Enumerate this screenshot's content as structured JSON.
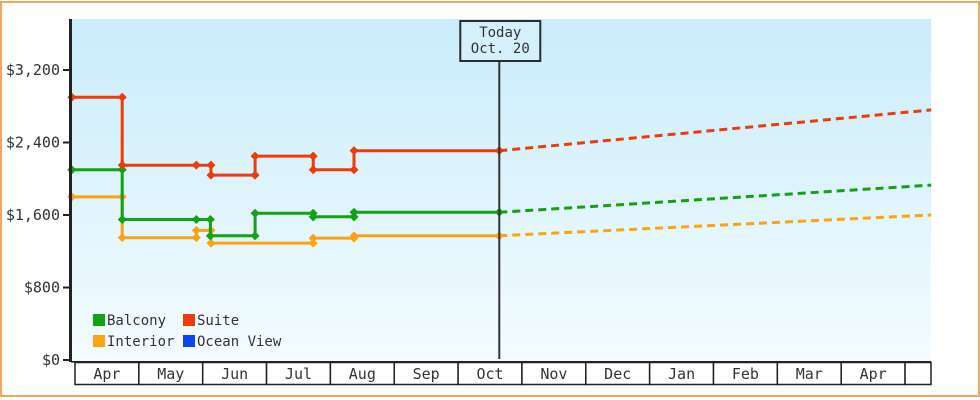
{
  "chart_data": {
    "type": "line",
    "title": "",
    "x_axis": {
      "categories": [
        "Apr",
        "May",
        "Jun",
        "Jul",
        "Aug",
        "Sep",
        "Oct",
        "Nov",
        "Dec",
        "Jan",
        "Feb",
        "Mar",
        "Apr"
      ]
    },
    "y_axis": {
      "ticks": [
        {
          "value": 0,
          "label": "$0"
        },
        {
          "value": 800,
          "label": "$800"
        },
        {
          "value": 1600,
          "label": "$1,600"
        },
        {
          "value": 2400,
          "label": "$2,400"
        },
        {
          "value": 3200,
          "label": "$3,200"
        }
      ],
      "range": [
        0,
        3750
      ]
    },
    "today_marker": {
      "line1": "Today",
      "line2": "Oct. 20",
      "month_position": 6.645
    },
    "series": [
      {
        "name": "Balcony",
        "color": "#15a015",
        "points": [
          [
            -0.05,
            2100
          ],
          [
            0.74,
            2100
          ],
          [
            0.74,
            1550
          ],
          [
            1.9,
            1550
          ],
          [
            2.12,
            1550
          ],
          [
            2.12,
            1370
          ],
          [
            2.82,
            1370
          ],
          [
            2.82,
            1620
          ],
          [
            3.73,
            1620
          ],
          [
            3.73,
            1580
          ],
          [
            4.37,
            1580
          ],
          [
            4.37,
            1630
          ],
          [
            6.645,
            1630
          ]
        ],
        "projection": [
          [
            6.645,
            1630
          ],
          [
            13.41,
            1930
          ]
        ]
      },
      {
        "name": "Suite",
        "color": "#ee3b0c",
        "points": [
          [
            -0.05,
            2900
          ],
          [
            0.74,
            2900
          ],
          [
            0.74,
            2150
          ],
          [
            1.9,
            2150
          ],
          [
            2.13,
            2150
          ],
          [
            2.13,
            2040
          ],
          [
            2.82,
            2040
          ],
          [
            2.82,
            2250
          ],
          [
            3.73,
            2250
          ],
          [
            3.73,
            2100
          ],
          [
            4.37,
            2100
          ],
          [
            4.37,
            2310
          ],
          [
            6.645,
            2310
          ]
        ],
        "projection": [
          [
            6.645,
            2310
          ],
          [
            13.41,
            2760
          ]
        ]
      },
      {
        "name": "Interior",
        "color": "#fca312",
        "points": [
          [
            -0.05,
            1800
          ],
          [
            0.74,
            1800
          ],
          [
            0.74,
            1350
          ],
          [
            1.9,
            1350
          ],
          [
            1.9,
            1430
          ],
          [
            2.13,
            1430
          ],
          [
            2.13,
            1290
          ],
          [
            3.73,
            1290
          ],
          [
            3.73,
            1345
          ],
          [
            4.37,
            1345
          ],
          [
            4.37,
            1370
          ],
          [
            6.645,
            1370
          ]
        ],
        "projection": [
          [
            6.645,
            1370
          ],
          [
            13.41,
            1600
          ]
        ]
      },
      {
        "name": "Ocean View",
        "color": "#0a46f0",
        "points": [],
        "projection": []
      }
    ],
    "legend_order": [
      "Balcony",
      "Suite",
      "Interior",
      "Ocean View"
    ],
    "colors": {
      "frame": "#eca763",
      "axis": "#222222",
      "text": "#333333",
      "plot_bg_top": "#c9ecfb",
      "plot_bg_bottom": "#f4fcff",
      "today_box_fill": "#d3f0fb",
      "month_cell_fill": "#ffffff"
    }
  }
}
